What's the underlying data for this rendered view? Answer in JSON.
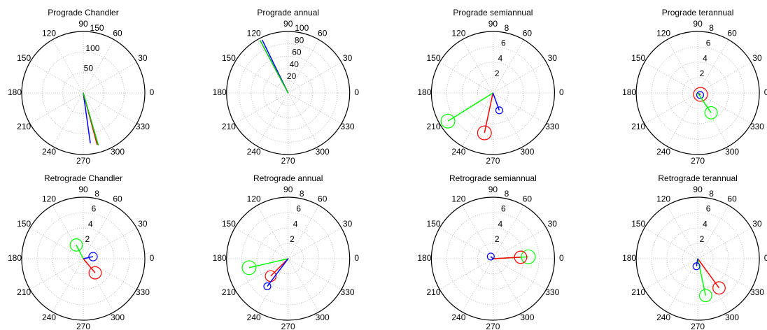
{
  "chart_data": [
    {
      "type": "polar",
      "title": "Prograde Chandler",
      "rlim": [
        0,
        150
      ],
      "rticks": [
        50,
        100,
        150
      ],
      "thetaticks": [
        0,
        30,
        60,
        90,
        120,
        150,
        180,
        210,
        240,
        270,
        300,
        330
      ],
      "grid": true,
      "series": [
        {
          "color": "#0000ff",
          "angle": 278,
          "magnitude": 124
        },
        {
          "color": "#ff0000",
          "angle": 285,
          "magnitude": 131
        },
        {
          "color": "#00cc00",
          "angle": 286,
          "magnitude": 133
        }
      ]
    },
    {
      "type": "polar",
      "title": "Prograde annual",
      "rlim": [
        0,
        100
      ],
      "rticks": [
        20,
        40,
        60,
        80,
        100
      ],
      "thetaticks": [
        0,
        30,
        60,
        90,
        120,
        150,
        180,
        210,
        240,
        270,
        300,
        330
      ],
      "grid": true,
      "series": [
        {
          "color": "#0000ff",
          "angle": 116,
          "magnitude": 96
        },
        {
          "color": "#00cc00",
          "angle": 118,
          "magnitude": 97
        }
      ]
    },
    {
      "type": "polar",
      "title": "Prograde semiannual",
      "rlim": [
        0,
        8
      ],
      "rticks": [
        2,
        4,
        6,
        8
      ],
      "thetaticks": [
        0,
        30,
        60,
        90,
        120,
        150,
        180,
        210,
        240,
        270,
        300,
        330
      ],
      "grid": true,
      "series": [
        {
          "color": "#ff0000",
          "angle": 258,
          "magnitude": 5.3,
          "error": 0.9
        },
        {
          "color": "#00ff00",
          "angle": 212,
          "magnitude": 6.9,
          "error": 0.9
        },
        {
          "color": "#0000ff",
          "angle": 290,
          "magnitude": 2.4,
          "error": 0.45
        }
      ]
    },
    {
      "type": "polar",
      "title": "Prograde terannual",
      "rlim": [
        0,
        8
      ],
      "rticks": [
        2,
        4,
        6,
        8
      ],
      "thetaticks": [
        0,
        30,
        60,
        90,
        120,
        150,
        180,
        210,
        240,
        270,
        300,
        330
      ],
      "grid": true,
      "series": [
        {
          "color": "#ff0000",
          "angle": 333,
          "magnitude": 0.4,
          "error": 0.9
        },
        {
          "color": "#0000ff",
          "angle": 320,
          "magnitude": 0.4,
          "error": 0.45
        },
        {
          "color": "#00ff00",
          "angle": 304,
          "magnitude": 3.1,
          "error": 0.8
        }
      ]
    },
    {
      "type": "polar",
      "title": "Retrograde Chandler",
      "rlim": [
        0,
        8
      ],
      "rticks": [
        2,
        4,
        6,
        8
      ],
      "thetaticks": [
        0,
        30,
        60,
        90,
        120,
        150,
        180,
        210,
        240,
        270,
        300,
        330
      ],
      "grid": true,
      "series": [
        {
          "color": "#00ff00",
          "angle": 117,
          "magnitude": 2.0,
          "error": 0.8
        },
        {
          "color": "#0000ff",
          "angle": 12,
          "magnitude": 1.3,
          "error": 0.55
        },
        {
          "color": "#ff0000",
          "angle": 310,
          "magnitude": 2.4,
          "error": 0.8
        }
      ]
    },
    {
      "type": "polar",
      "title": "Retrograde annual",
      "rlim": [
        0,
        8
      ],
      "rticks": [
        2,
        4,
        6,
        8
      ],
      "thetaticks": [
        0,
        30,
        60,
        90,
        120,
        150,
        180,
        210,
        240,
        270,
        300,
        330
      ],
      "grid": true,
      "series": [
        {
          "color": "#00ff00",
          "angle": 193,
          "magnitude": 5.2,
          "error": 0.9
        },
        {
          "color": "#ff0000",
          "angle": 225,
          "magnitude": 3.2,
          "error": 0.7
        },
        {
          "color": "#0000ff",
          "angle": 233,
          "magnitude": 4.5,
          "error": 0.45
        }
      ]
    },
    {
      "type": "polar",
      "title": "Retrograde semiannual",
      "rlim": [
        0,
        8
      ],
      "rticks": [
        2,
        4,
        6,
        8
      ],
      "thetaticks": [
        0,
        30,
        60,
        90,
        120,
        150,
        180,
        210,
        240,
        270,
        300,
        330
      ],
      "grid": true,
      "series": [
        {
          "color": "#00ff00",
          "angle": 3,
          "magnitude": 4.6,
          "error": 0.9
        },
        {
          "color": "#ff0000",
          "angle": 3,
          "magnitude": 3.6,
          "error": 0.8
        },
        {
          "color": "#0000ff",
          "angle": 135,
          "magnitude": 0.4,
          "error": 0.45
        }
      ]
    },
    {
      "type": "polar",
      "title": "Retrograde terannual",
      "rlim": [
        0,
        8
      ],
      "rticks": [
        2,
        4,
        6,
        8
      ],
      "thetaticks": [
        0,
        30,
        60,
        90,
        120,
        150,
        180,
        210,
        240,
        270,
        300,
        330
      ],
      "grid": true,
      "series": [
        {
          "color": "#ff0000",
          "angle": 306,
          "magnitude": 4.7,
          "error": 0.8
        },
        {
          "color": "#00ff00",
          "angle": 282,
          "magnitude": 4.9,
          "error": 0.8
        },
        {
          "color": "#0000ff",
          "angle": 260,
          "magnitude": 1.0,
          "error": 0.45
        }
      ]
    }
  ]
}
